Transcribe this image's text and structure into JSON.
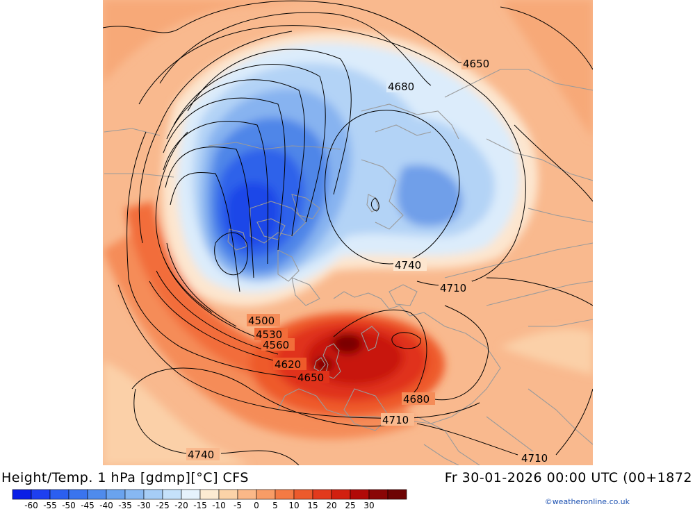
{
  "title": {
    "left": "Height/Temp. 1 hPa [gdmp][°C] CFS",
    "right": "Fr 30-01-2026 00:00 UTC (00+1872"
  },
  "credit": "©weatheronline.co.uk",
  "legend": {
    "colors": [
      "#0a1ee6",
      "#1e3ff0",
      "#2b5ff0",
      "#3a74ee",
      "#4f8bec",
      "#6aa3ee",
      "#87b8f2",
      "#a6cdf6",
      "#c5e1fa",
      "#e6f2fc",
      "#fdebd2",
      "#fcd3a8",
      "#fbb888",
      "#f89c66",
      "#f47a44",
      "#ec5a2c",
      "#e23a1c",
      "#d2200f",
      "#b10a08",
      "#8a0606",
      "#6e0404"
    ],
    "labels": [
      "-60",
      "-55",
      "-50",
      "-45",
      "-40",
      "-35",
      "-30",
      "-25",
      "-20",
      "-15",
      "-10",
      "-5",
      "0",
      "5",
      "10",
      "15",
      "20",
      "25",
      "30"
    ]
  },
  "contour_labels": [
    "4650",
    "4680",
    "4740",
    "4710",
    "4500",
    "4530",
    "4560",
    "4620",
    "4650",
    "4680",
    "4710",
    "4740",
    "4710"
  ]
}
